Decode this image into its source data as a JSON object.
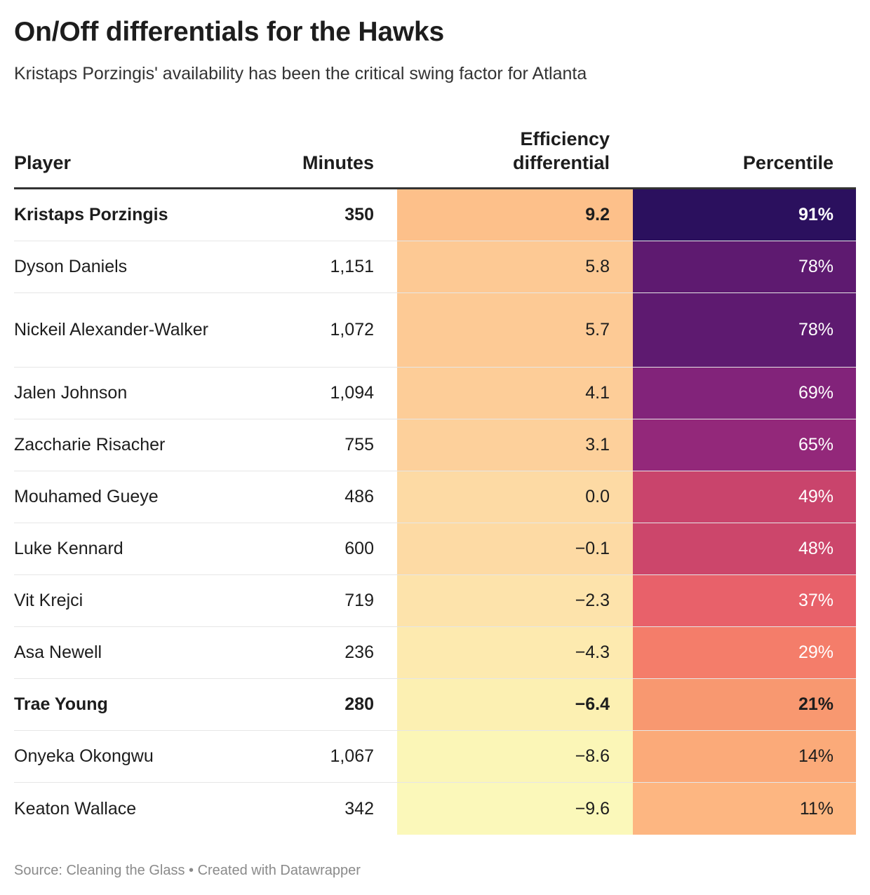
{
  "title": "On/Off differentials for the Hawks",
  "subtitle": "Kristaps Porzingis' availability has been the critical swing factor for Atlanta",
  "footer": "Source: Cleaning the Glass • Created with Datawrapper",
  "chart_data": {
    "type": "table",
    "columns": [
      "Player",
      "Minutes",
      "Efficiency differential",
      "Percentile"
    ],
    "rows": [
      {
        "player": "Kristaps Porzingis",
        "minutes": "350",
        "eff": "9.2",
        "pct": "91%",
        "bold": true,
        "eff_color": "#fdc08a",
        "pct_color": "#2b105e",
        "pct_text": "#ffffff"
      },
      {
        "player": "Dyson Daniels",
        "minutes": "1,151",
        "eff": "5.8",
        "pct": "78%",
        "bold": false,
        "eff_color": "#fdc994",
        "pct_color": "#5e1a70",
        "pct_text": "#ffffff"
      },
      {
        "player": "Nickeil Alexander-Walker",
        "minutes": "1,072",
        "eff": "5.7",
        "pct": "78%",
        "bold": false,
        "eff_color": "#fdca95",
        "pct_color": "#5e1a70",
        "pct_text": "#ffffff",
        "tall": true
      },
      {
        "player": "Jalen Johnson",
        "minutes": "1,094",
        "eff": "4.1",
        "pct": "69%",
        "bold": false,
        "eff_color": "#fdcd98",
        "pct_color": "#82237a",
        "pct_text": "#ffffff"
      },
      {
        "player": "Zaccharie Risacher",
        "minutes": "755",
        "eff": "3.1",
        "pct": "65%",
        "bold": false,
        "eff_color": "#fdd09b",
        "pct_color": "#93287a",
        "pct_text": "#ffffff"
      },
      {
        "player": "Mouhamed Gueye",
        "minutes": "486",
        "eff": "0.0",
        "pct": "49%",
        "bold": false,
        "eff_color": "#fddaa4",
        "pct_color": "#c9446c",
        "pct_text": "#ffffff"
      },
      {
        "player": "Luke Kennard",
        "minutes": "600",
        "eff": "−0.1",
        "pct": "48%",
        "bold": false,
        "eff_color": "#fddaa4",
        "pct_color": "#cc466b",
        "pct_text": "#ffffff"
      },
      {
        "player": "Vit Krejci",
        "minutes": "719",
        "eff": "−2.3",
        "pct": "37%",
        "bold": false,
        "eff_color": "#fde3ab",
        "pct_color": "#e8616a",
        "pct_text": "#ffffff"
      },
      {
        "player": "Asa Newell",
        "minutes": "236",
        "eff": "−4.3",
        "pct": "29%",
        "bold": false,
        "eff_color": "#fdeaaf",
        "pct_color": "#f47d6a",
        "pct_text": "#ffffff"
      },
      {
        "player": "Trae Young",
        "minutes": "280",
        "eff": "−6.4",
        "pct": "21%",
        "bold": true,
        "eff_color": "#fcf0b2",
        "pct_color": "#f89870",
        "pct_text": "#1d1d1d"
      },
      {
        "player": "Onyeka Okongwu",
        "minutes": "1,067",
        "eff": "−8.6",
        "pct": "14%",
        "bold": false,
        "eff_color": "#fbf6b7",
        "pct_color": "#fbaa79",
        "pct_text": "#1d1d1d"
      },
      {
        "player": "Keaton Wallace",
        "minutes": "342",
        "eff": "−9.6",
        "pct": "11%",
        "bold": false,
        "eff_color": "#fbf8ba",
        "pct_color": "#fdb681",
        "pct_text": "#1d1d1d"
      }
    ]
  }
}
